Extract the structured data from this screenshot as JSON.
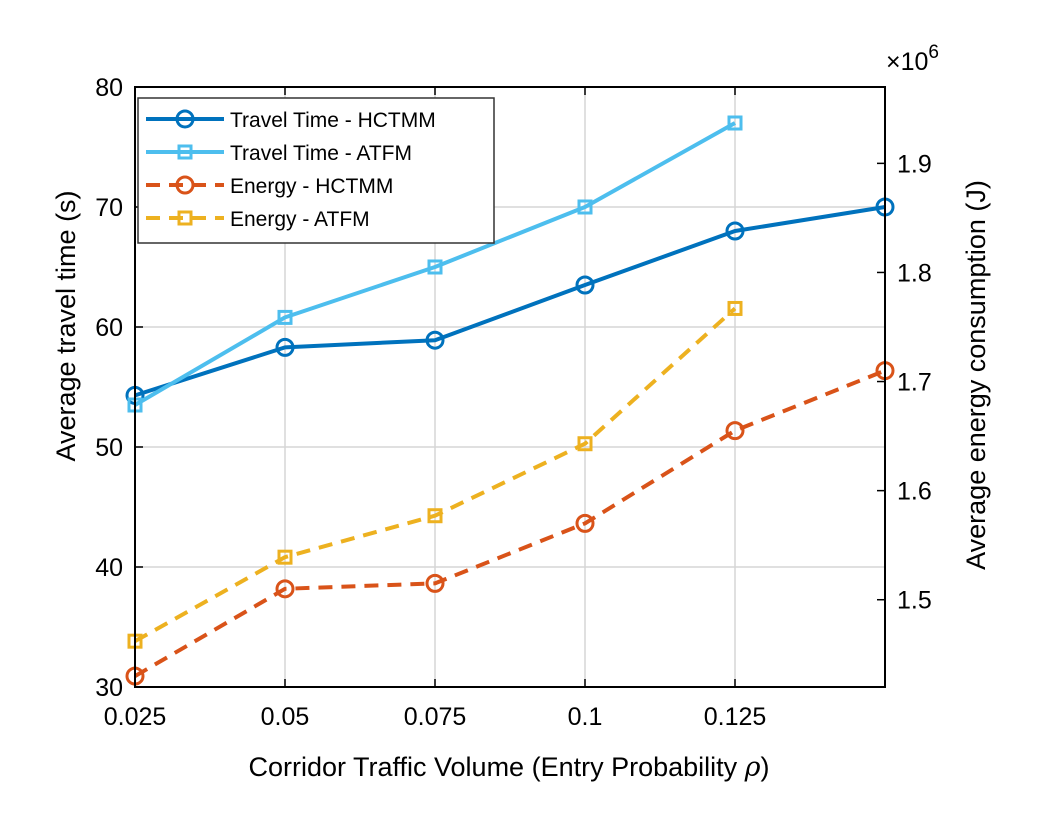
{
  "chart_data": {
    "type": "line",
    "x": [
      0.025,
      0.05,
      0.075,
      0.1,
      0.125,
      0.15
    ],
    "x_tick_labels": [
      "0.025",
      "0.05",
      "0.075",
      "0.1",
      "0.125"
    ],
    "xlabel_prefix": "Corridor Traffic Volume (Entry Probability ",
    "xlabel_symbol": "ρ",
    "xlabel_suffix": ")",
    "xlim": [
      0.025,
      0.15
    ],
    "y_left": {
      "label": "Average travel time (s)",
      "lim": [
        30,
        80
      ],
      "ticks": [
        "30",
        "40",
        "50",
        "60",
        "70",
        "80"
      ]
    },
    "y_right": {
      "label": "Average energy consumption (J)",
      "lim": [
        1.42,
        1.97
      ],
      "ticks": [
        "1.5",
        "1.6",
        "1.7",
        "1.8",
        "1.9"
      ],
      "exponent_base": "×10",
      "exponent_power": "6"
    },
    "grid": true,
    "legend_position": "top-left",
    "series": [
      {
        "name": "Travel Time - HCTMM",
        "axis": "left",
        "color": "#0072BD",
        "marker": "circle",
        "dashed": false,
        "values": [
          54.3,
          58.3,
          58.9,
          63.5,
          68.0,
          70.0
        ]
      },
      {
        "name": "Travel Time - ATFM",
        "axis": "left",
        "color": "#4DBEEE",
        "marker": "square",
        "dashed": false,
        "values": [
          53.5,
          60.8,
          65.0,
          70.0,
          77.0,
          null
        ]
      },
      {
        "name": "Energy - HCTMM",
        "axis": "right",
        "color": "#D95319",
        "marker": "circle",
        "dashed": true,
        "values": [
          1.43,
          1.51,
          1.515,
          1.57,
          1.655,
          1.71
        ]
      },
      {
        "name": "Energy - ATFM",
        "axis": "right",
        "color": "#EDB120",
        "marker": "square",
        "dashed": true,
        "values": [
          1.462,
          1.539,
          1.577,
          1.643,
          1.767,
          null
        ]
      }
    ]
  }
}
